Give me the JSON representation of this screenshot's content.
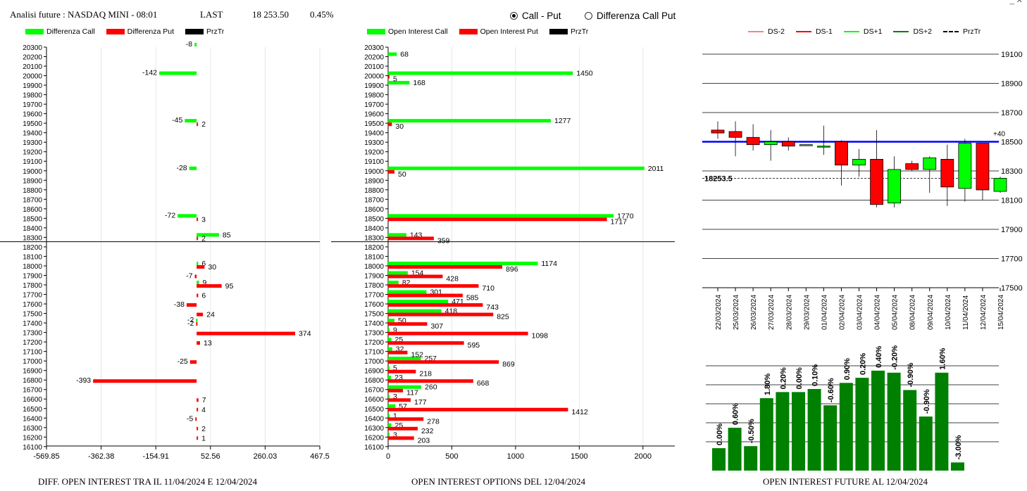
{
  "header": {
    "title": "Analisi future : NASDAQ MINI - 08:01",
    "last_label": "LAST",
    "last_value": "18 253.50",
    "change": "0.45%"
  },
  "radio": {
    "option1": "Call - Put",
    "option2": "Differenza Call Put",
    "selected": "Call - Put"
  },
  "legend1": {
    "a": "Differenza Call",
    "b": "Differenza Put",
    "c": "PrzTr"
  },
  "legend2": {
    "a": "Open Interest Call",
    "b": "Open Interest Put",
    "c": "PrzTr"
  },
  "legend3": {
    "a": "DS-2",
    "b": "DS-1",
    "c": "DS+1",
    "d": "DS+2",
    "e": "PrzTr"
  },
  "footers": {
    "left": "DIFF. OPEN INTEREST TRA IL 11/04/2024 E 12/04/2024",
    "middle": "OPEN INTEREST OPTIONS DEL 12/04/2024",
    "right": "OPEN INTEREST FUTURE AL 12/04/2024"
  },
  "colors": {
    "call": "#00ff00",
    "put": "#ff0000",
    "price": "#000000",
    "level": "#0000ff",
    "oi": "#008000"
  },
  "chart_data": [
    {
      "type": "bar",
      "strikes": [
        20300,
        20200,
        20100,
        20000,
        19900,
        19800,
        19700,
        19600,
        19500,
        19400,
        19300,
        19200,
        19100,
        19000,
        18900,
        18800,
        18700,
        18600,
        18500,
        18400,
        18300,
        18200,
        18100,
        18000,
        17900,
        17800,
        17700,
        17600,
        17500,
        17400,
        17300,
        17200,
        17100,
        17000,
        16900,
        16800,
        16700,
        16600,
        16500,
        16400,
        16300,
        16200,
        16100
      ],
      "xticks": [
        "-569.85",
        "-362.38",
        "-154.91",
        "52.56",
        "260.03",
        "467.5"
      ],
      "xlim": [
        -569.85,
        467.5
      ],
      "price_level": 18253.5,
      "bars": [
        {
          "strike": 20300,
          "series": "call",
          "value": -8,
          "label": "-8"
        },
        {
          "strike": 20000,
          "series": "call",
          "value": -142,
          "label": "-142"
        },
        {
          "strike": 19500,
          "series": "call",
          "value": -45,
          "label": "-45"
        },
        {
          "strike": 19500,
          "series": "put",
          "value": 2,
          "label": "2"
        },
        {
          "strike": 19000,
          "series": "call",
          "value": -28,
          "label": "-28"
        },
        {
          "strike": 18500,
          "series": "call",
          "value": -72,
          "label": "-72"
        },
        {
          "strike": 18500,
          "series": "put",
          "value": 3,
          "label": "3"
        },
        {
          "strike": 18300,
          "series": "call",
          "value": 85,
          "label": "85"
        },
        {
          "strike": 18300,
          "series": "put",
          "value": 2,
          "label": "2"
        },
        {
          "strike": 18000,
          "series": "call",
          "value": 6,
          "label": "6"
        },
        {
          "strike": 18000,
          "series": "put",
          "value": 30,
          "label": "30"
        },
        {
          "strike": 17900,
          "series": "put",
          "value": -7,
          "label": "-7"
        },
        {
          "strike": 17800,
          "series": "call",
          "value": 9,
          "label": "9"
        },
        {
          "strike": 17800,
          "series": "put",
          "value": 95,
          "label": "95"
        },
        {
          "strike": 17700,
          "series": "put",
          "value": 6,
          "label": "6"
        },
        {
          "strike": 17600,
          "series": "put",
          "value": -38,
          "label": "-38"
        },
        {
          "strike": 17500,
          "series": "put",
          "value": 24,
          "label": "24"
        },
        {
          "strike": 17400,
          "series": "call",
          "value": -2,
          "label": "-2"
        },
        {
          "strike": 17400,
          "series": "put",
          "value": -2,
          "label": "-2"
        },
        {
          "strike": 17300,
          "series": "put",
          "value": 374,
          "label": "374"
        },
        {
          "strike": 17200,
          "series": "put",
          "value": 13,
          "label": "13"
        },
        {
          "strike": 17000,
          "series": "put",
          "value": -25,
          "label": "-25"
        },
        {
          "strike": 16800,
          "series": "put",
          "value": -393,
          "label": "-393"
        },
        {
          "strike": 16600,
          "series": "put",
          "value": 7,
          "label": "7"
        },
        {
          "strike": 16500,
          "series": "put",
          "value": 4,
          "label": "4"
        },
        {
          "strike": 16400,
          "series": "put",
          "value": -5,
          "label": "-5"
        },
        {
          "strike": 16300,
          "series": "put",
          "value": 2,
          "label": "2"
        },
        {
          "strike": 16200,
          "series": "put",
          "value": 1,
          "label": "1"
        }
      ]
    },
    {
      "type": "bar",
      "xticks": [
        "0",
        "500",
        "1000",
        "1500",
        "2000"
      ],
      "xlim": [
        0,
        2250
      ],
      "call": [
        {
          "strike": 20200,
          "value": 68
        },
        {
          "strike": 20000,
          "value": 1450
        },
        {
          "strike": 19900,
          "value": 168
        },
        {
          "strike": 19500,
          "value": 1277
        },
        {
          "strike": 19000,
          "value": 2011
        },
        {
          "strike": 18500,
          "value": 1770
        },
        {
          "strike": 18300,
          "value": 143
        },
        {
          "strike": 18000,
          "value": 1174
        },
        {
          "strike": 17900,
          "value": 154
        },
        {
          "strike": 17800,
          "value": 82
        },
        {
          "strike": 17700,
          "value": 301
        },
        {
          "strike": 17600,
          "value": 471
        },
        {
          "strike": 17500,
          "value": 418
        },
        {
          "strike": 17400,
          "value": 50
        },
        {
          "strike": 17300,
          "value": 9
        },
        {
          "strike": 17200,
          "value": 25
        },
        {
          "strike": 17100,
          "value": 32
        },
        {
          "strike": 17000,
          "value": 257
        },
        {
          "strike": 16900,
          "value": 5
        },
        {
          "strike": 16800,
          "value": 23
        },
        {
          "strike": 16700,
          "value": 260
        },
        {
          "strike": 16600,
          "value": 3
        },
        {
          "strike": 16500,
          "value": 57
        },
        {
          "strike": 16400,
          "value": 1
        },
        {
          "strike": 16300,
          "value": 25
        },
        {
          "strike": 16200,
          "value": 3
        }
      ],
      "put": [
        {
          "strike": 20000,
          "value": 5
        },
        {
          "strike": 19500,
          "value": 30
        },
        {
          "strike": 19000,
          "value": 50
        },
        {
          "strike": 18500,
          "value": 1717
        },
        {
          "strike": 18300,
          "value": 359
        },
        {
          "strike": 18000,
          "value": 896
        },
        {
          "strike": 17900,
          "value": 428
        },
        {
          "strike": 17800,
          "value": 710
        },
        {
          "strike": 17700,
          "value": 585
        },
        {
          "strike": 17600,
          "value": 743
        },
        {
          "strike": 17500,
          "value": 825
        },
        {
          "strike": 17400,
          "value": 307
        },
        {
          "strike": 17300,
          "value": 1098
        },
        {
          "strike": 17200,
          "value": 595
        },
        {
          "strike": 17100,
          "value": 152
        },
        {
          "strike": 17000,
          "value": 869
        },
        {
          "strike": 16900,
          "value": 218
        },
        {
          "strike": 16800,
          "value": 668
        },
        {
          "strike": 16700,
          "value": 117
        },
        {
          "strike": 16600,
          "value": 177
        },
        {
          "strike": 16500,
          "value": 1412
        },
        {
          "strike": 16400,
          "value": 278
        },
        {
          "strike": 16300,
          "value": 232
        },
        {
          "strike": 16200,
          "value": 203
        }
      ]
    },
    {
      "type": "candlestick",
      "yticks": [
        19100,
        18900,
        18700,
        18500,
        18300,
        18100,
        17900,
        17700,
        17500
      ],
      "ylim": [
        17500,
        19100
      ],
      "level": 18500,
      "level_label": "+40",
      "price_label": "18253.5",
      "candles": [
        {
          "date": "22/03/2024",
          "open": 18580,
          "high": 18640,
          "low": 18520,
          "close": 18560
        },
        {
          "date": "25/03/2024",
          "open": 18570,
          "high": 18640,
          "low": 18400,
          "close": 18530
        },
        {
          "date": "26/03/2024",
          "open": 18530,
          "high": 18620,
          "low": 18440,
          "close": 18480
        },
        {
          "date": "27/03/2024",
          "open": 18480,
          "high": 18580,
          "low": 18370,
          "close": 18500
        },
        {
          "date": "28/03/2024",
          "open": 18500,
          "high": 18530,
          "low": 18440,
          "close": 18470
        },
        {
          "date": "29/03/2024",
          "open": 18480,
          "high": 18480,
          "low": 18480,
          "close": 18480
        },
        {
          "date": "01/04/2024",
          "open": 18470,
          "high": 18610,
          "low": 18410,
          "close": 18470
        },
        {
          "date": "02/04/2024",
          "open": 18500,
          "high": 18510,
          "low": 18200,
          "close": 18340
        },
        {
          "date": "03/04/2024",
          "open": 18340,
          "high": 18450,
          "low": 18260,
          "close": 18380
        },
        {
          "date": "04/04/2024",
          "open": 18380,
          "high": 18580,
          "low": 18050,
          "close": 18070
        },
        {
          "date": "05/04/2024",
          "open": 18080,
          "high": 18400,
          "low": 18050,
          "close": 18310
        },
        {
          "date": "08/04/2024",
          "open": 18350,
          "high": 18370,
          "low": 18300,
          "close": 18310
        },
        {
          "date": "09/04/2024",
          "open": 18310,
          "high": 18400,
          "low": 18150,
          "close": 18390
        },
        {
          "date": "10/04/2024",
          "open": 18380,
          "high": 18480,
          "low": 18060,
          "close": 18190
        },
        {
          "date": "11/04/2024",
          "open": 18180,
          "high": 18520,
          "low": 18090,
          "close": 18490
        },
        {
          "date": "12/04/2024",
          "open": 18490,
          "high": 18490,
          "low": 18100,
          "close": 18170
        },
        {
          "date": "15/04/2024",
          "open": 18160,
          "high": 18260,
          "low": 18150,
          "close": 18250
        }
      ]
    },
    {
      "type": "bar",
      "values": [
        22,
        42,
        24,
        71,
        77,
        77,
        80,
        64,
        86,
        91,
        98,
        96,
        79,
        53,
        96,
        8
      ],
      "labels": [
        "0.00%",
        "0.60%",
        "-0.50%",
        "1.80%",
        "0.20%",
        "0.00%",
        "0.10%",
        "-0.60%",
        "0.90%",
        "0.20%",
        "0.40%",
        "-0.20%",
        "-0.90%",
        "-0.90%",
        "1.60%",
        "-3.00%"
      ]
    }
  ]
}
